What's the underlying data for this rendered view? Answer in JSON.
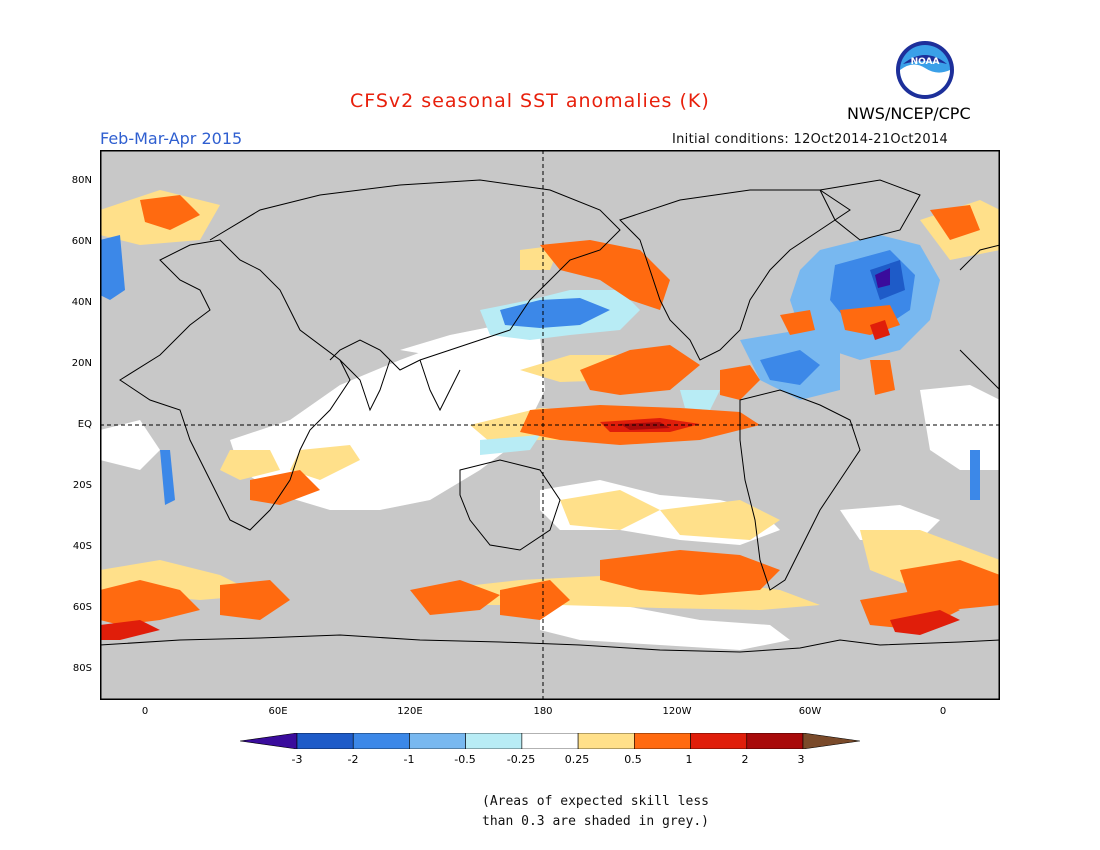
{
  "title": "CFSv2 seasonal SST anomalies (K)",
  "period": "Feb-Mar-Apr 2015",
  "initial_conditions": "Initial conditions: 12Oct2014-21Oct2014",
  "agency": "NWS/NCEP/CPC",
  "logo_text": "NOAA",
  "lat_labels": [
    "80N",
    "60N",
    "40N",
    "20N",
    "EQ",
    "20S",
    "40S",
    "60S",
    "80S"
  ],
  "lon_labels": [
    "0",
    "60E",
    "120E",
    "180",
    "120W",
    "60W",
    "0"
  ],
  "colorbar": {
    "ticks": [
      "-3",
      "-2",
      "-1",
      "-0.5",
      "-0.25",
      "0.25",
      "0.5",
      "1",
      "2",
      "3"
    ],
    "colors": [
      "#3a0c9c",
      "#1e5bc8",
      "#3c88e8",
      "#78b8f0",
      "#b8ecf5",
      "#ffffff",
      "#ffe08a",
      "#ff6a10",
      "#e01e0a",
      "#a80a0a",
      "#7a4a2a"
    ]
  },
  "land_color": "#c8c8c8",
  "note": [
    "(Areas of expected skill less",
    "than 0.3 are shaded in grey.)"
  ]
}
